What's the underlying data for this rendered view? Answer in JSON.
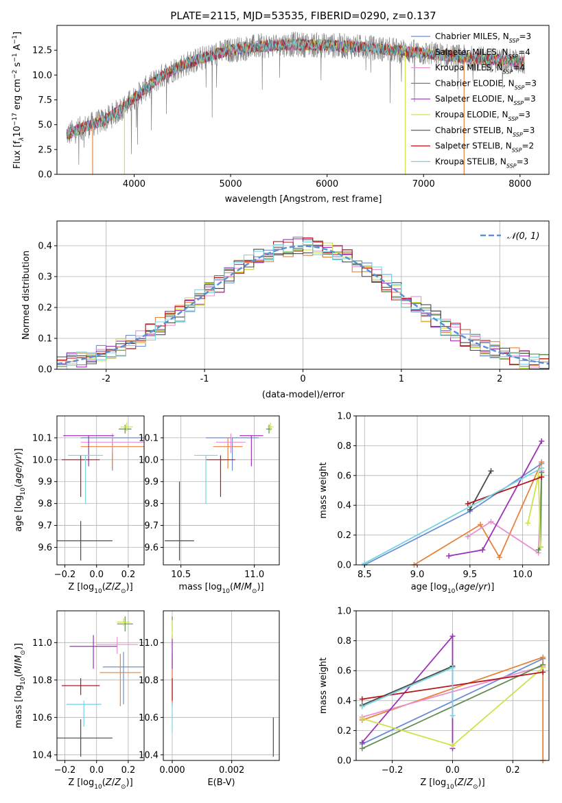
{
  "title": "PLATE=2115, MJD=53535, FIBERID=0290, z=0.137",
  "colors": {
    "chabrier_miles": "#6a8ed6",
    "salpeter_miles": "#e8823a",
    "kroupa_miles": "#e78fcf",
    "chabrier_elodie": "#5f8c52",
    "salpeter_elodie": "#9b32b8",
    "kroupa_elodie": "#cfe24c",
    "chabrier_stelib": "#4a4a4a",
    "salpeter_stelib": "#b5161b",
    "kroupa_stelib": "#77d3e0",
    "gaussian": "#5b8fd6",
    "grid": "#b0b0b0",
    "data_gray": "#808080"
  },
  "legend": [
    {
      "key": "chabrier_miles",
      "label": "Chabrier MILES, N",
      "sub": "SSP",
      "suffix": "=3"
    },
    {
      "key": "salpeter_miles",
      "label": "Salpeter MILES, N",
      "sub": "SSP",
      "suffix": "=4"
    },
    {
      "key": "kroupa_miles",
      "label": "Kroupa MILES, N",
      "sub": "SSP",
      "suffix": "=4"
    },
    {
      "key": "chabrier_elodie",
      "label": "Chabrier ELODIE, N",
      "sub": "SSP",
      "suffix": "=3"
    },
    {
      "key": "salpeter_elodie",
      "label": "Salpeter ELODIE, N",
      "sub": "SSP",
      "suffix": "=3"
    },
    {
      "key": "kroupa_elodie",
      "label": "Kroupa ELODIE, N",
      "sub": "SSP",
      "suffix": "=3"
    },
    {
      "key": "chabrier_stelib",
      "label": "Chabrier STELIB, N",
      "sub": "SSP",
      "suffix": "=3"
    },
    {
      "key": "salpeter_stelib",
      "label": "Salpeter STELIB, N",
      "sub": "SSP",
      "suffix": "=2"
    },
    {
      "key": "kroupa_stelib",
      "label": "Kroupa STELIB, N",
      "sub": "SSP",
      "suffix": "=3"
    }
  ],
  "chart_data": [
    {
      "id": "spectrum",
      "type": "line",
      "xlabel": "wavelength [Angstrom, rest frame]",
      "ylabel_parts": [
        "Flux [f",
        "λ",
        "10",
        "−17",
        " erg cm",
        "−2",
        " s",
        "−1",
        " A",
        "−1",
        "]"
      ],
      "xlim": [
        3200,
        8300
      ],
      "ylim": [
        0,
        15
      ],
      "xticks": [
        4000,
        5000,
        6000,
        7000,
        8000
      ],
      "yticks": [
        0,
        2.5,
        5,
        7.5,
        10,
        12.5
      ],
      "ytick_labels": [
        "0.0",
        "2.5",
        "5.0",
        "7.5",
        "10.0",
        "12.5"
      ],
      "continuum": {
        "x": [
          3300,
          3500,
          3700,
          3900,
          4100,
          4300,
          4500,
          4800,
          5000,
          5300,
          5600,
          6000,
          6400,
          6800,
          7200,
          7600,
          8050
        ],
        "y": [
          4.0,
          4.8,
          5.5,
          6.8,
          8.5,
          10.0,
          11.0,
          12.0,
          12.5,
          12.9,
          13.1,
          13.0,
          12.8,
          12.4,
          12.0,
          11.6,
          11.3
        ]
      },
      "grid": false
    },
    {
      "id": "residuals",
      "type": "step",
      "xlabel": "(data-model)/error",
      "ylabel": "Normed distribution",
      "xlim": [
        -2.5,
        2.5
      ],
      "ylim": [
        0,
        0.48
      ],
      "xticks": [
        -2,
        -1,
        0,
        1,
        2
      ],
      "yticks": [
        0,
        0.1,
        0.2,
        0.3,
        0.4
      ],
      "ytick_labels": [
        "0.0",
        "0.1",
        "0.2",
        "0.3",
        "0.4"
      ],
      "legend_label": "𝒩(0, 1)",
      "bin_width": 0.1,
      "gaussian": {
        "mu": 0,
        "sigma": 1
      },
      "grid": true
    },
    {
      "id": "age_vs_Z",
      "type": "errorbar",
      "xlabel": "Z [log10(Z/Z⊙)]",
      "ylabel": "age [log10(age/yr)]",
      "xlim": [
        -0.25,
        0.3
      ],
      "ylim": [
        9.52,
        10.2
      ],
      "xticks": [
        -0.2,
        0,
        0.2
      ],
      "xtick_labels": [
        "−0.2",
        "0.0",
        "0.2"
      ],
      "yticks": [
        9.6,
        9.7,
        9.8,
        9.9,
        10.0,
        10.1
      ],
      "ytick_labels": [
        "9.6",
        "9.7",
        "9.8",
        "9.9",
        "10.0",
        "10.1"
      ],
      "points": [
        {
          "key": "chabrier_miles",
          "x": 0.1,
          "xerr": 0.2,
          "y": 10.1,
          "yerr": [
            0.15,
            0.0
          ]
        },
        {
          "key": "salpeter_miles",
          "x": 0.1,
          "xerr": 0.2,
          "y": 10.06,
          "yerr": [
            0.1,
            0.04
          ]
        },
        {
          "key": "kroupa_miles",
          "x": 0.1,
          "xerr": 0.2,
          "y": 10.08,
          "yerr": [
            0.05,
            0.04
          ]
        },
        {
          "key": "chabrier_elodie",
          "x": 0.18,
          "xerr": 0.04,
          "y": 10.14,
          "yerr": [
            0.02,
            0.02
          ]
        },
        {
          "key": "salpeter_elodie",
          "x": -0.05,
          "xerr": 0.16,
          "y": 10.11,
          "yerr": [
            0.14,
            0.0
          ]
        },
        {
          "key": "kroupa_elodie",
          "x": 0.19,
          "xerr": 0.04,
          "y": 10.15,
          "yerr": [
            0.02,
            0.02
          ]
        },
        {
          "key": "chabrier_stelib",
          "x": -0.1,
          "xerr": 0.2,
          "y": 9.63,
          "yerr": [
            0.09,
            0.09
          ]
        },
        {
          "key": "salpeter_stelib",
          "x": -0.1,
          "xerr": 0.12,
          "y": 10.0,
          "yerr": [
            0.17,
            0.02
          ]
        },
        {
          "key": "kroupa_stelib",
          "x": -0.07,
          "xerr": 0.11,
          "y": 10.02,
          "yerr": [
            0.22,
            0.0
          ]
        }
      ]
    },
    {
      "id": "age_vs_mass",
      "type": "errorbar",
      "xlabel": "mass [log10(M/M⊙)]",
      "ylabel": "",
      "xlim": [
        10.38,
        11.17
      ],
      "ylim": [
        9.52,
        10.2
      ],
      "xticks": [
        10.5,
        11.0
      ],
      "xtick_labels": [
        "10.5",
        "11.0"
      ],
      "yticks": [
        9.6,
        9.7,
        9.8,
        9.9,
        10.0,
        10.1
      ],
      "ytick_labels": [
        "9.6",
        "9.7",
        "9.8",
        "9.9",
        "10.0",
        "10.1"
      ],
      "points": [
        {
          "key": "chabrier_miles",
          "x": 10.85,
          "xerr": 0.18,
          "y": 10.1,
          "yerr": [
            0.15,
            0.0
          ]
        },
        {
          "key": "salpeter_miles",
          "x": 10.82,
          "xerr": 0.1,
          "y": 10.06,
          "yerr": [
            0.1,
            0.04
          ]
        },
        {
          "key": "kroupa_miles",
          "x": 10.84,
          "xerr": 0.1,
          "y": 10.08,
          "yerr": [
            0.05,
            0.04
          ]
        },
        {
          "key": "chabrier_elodie",
          "x": 11.1,
          "xerr": 0.02,
          "y": 10.14,
          "yerr": [
            0.02,
            0.02
          ]
        },
        {
          "key": "salpeter_elodie",
          "x": 10.98,
          "xerr": 0.08,
          "y": 10.11,
          "yerr": [
            0.14,
            0.0
          ]
        },
        {
          "key": "kroupa_elodie",
          "x": 11.11,
          "xerr": 0.02,
          "y": 10.15,
          "yerr": [
            0.02,
            0.02
          ]
        },
        {
          "key": "chabrier_stelib",
          "x": 10.49,
          "xerr": 0.1,
          "y": 9.63,
          "yerr": [
            0.09,
            0.27
          ]
        },
        {
          "key": "salpeter_stelib",
          "x": 10.77,
          "xerr": 0.1,
          "y": 10.0,
          "yerr": [
            0.17,
            0.02
          ]
        },
        {
          "key": "kroupa_stelib",
          "x": 10.67,
          "xerr": 0.08,
          "y": 10.02,
          "yerr": [
            0.22,
            0.0
          ]
        }
      ]
    },
    {
      "id": "weight_vs_age",
      "type": "line",
      "xlabel": "age [log10(age/yr)]",
      "ylabel": "mass weight",
      "xlim": [
        8.42,
        10.25
      ],
      "ylim": [
        0,
        1
      ],
      "xticks": [
        8.5,
        9.0,
        9.5,
        10.0
      ],
      "xtick_labels": [
        "8.5",
        "9.0",
        "9.5",
        "10.0"
      ],
      "yticks": [
        0,
        0.2,
        0.4,
        0.6,
        0.8,
        1.0
      ],
      "ytick_labels": [
        "0.0",
        "0.2",
        "0.4",
        "0.6",
        "0.8",
        "1.0"
      ],
      "grid": true,
      "series": [
        {
          "key": "chabrier_miles",
          "x": [
            8.5,
            9.5,
            10.18
          ],
          "y": [
            0.0,
            0.36,
            0.68
          ]
        },
        {
          "key": "salpeter_miles",
          "x": [
            8.97,
            9.6,
            9.78,
            10.18
          ],
          "y": [
            0.0,
            0.27,
            0.05,
            0.69
          ]
        },
        {
          "key": "kroupa_miles",
          "x": [
            9.48,
            9.7,
            10.15,
            10.18
          ],
          "y": [
            0.19,
            0.29,
            0.08,
            0.63
          ]
        },
        {
          "key": "chabrier_elodie",
          "x": [
            10.15,
            10.17,
            10.18
          ],
          "y": [
            0.1,
            0.12,
            0.62
          ]
        },
        {
          "key": "salpeter_elodie",
          "x": [
            9.3,
            9.62,
            10.18
          ],
          "y": [
            0.06,
            0.1,
            0.83
          ]
        },
        {
          "key": "kroupa_elodie",
          "x": [
            10.05,
            10.15,
            10.17
          ],
          "y": [
            0.28,
            0.6,
            0.12
          ]
        },
        {
          "key": "chabrier_stelib",
          "x": [
            9.5,
            9.7
          ],
          "y": [
            0.37,
            0.63
          ]
        },
        {
          "key": "salpeter_stelib",
          "x": [
            9.48,
            10.18
          ],
          "y": [
            0.41,
            0.59
          ]
        },
        {
          "key": "kroupa_stelib",
          "x": [
            8.5,
            10.18
          ],
          "y": [
            0.01,
            0.65
          ]
        }
      ]
    },
    {
      "id": "mass_vs_Z",
      "type": "errorbar",
      "xlabel": "Z [log10(Z/Z⊙)]",
      "ylabel": "mass [log10(M/M⊙)]",
      "xlim": [
        -0.25,
        0.3
      ],
      "ylim": [
        10.37,
        11.17
      ],
      "xticks": [
        -0.2,
        0,
        0.2
      ],
      "xtick_labels": [
        "−0.2",
        "0.0",
        "0.2"
      ],
      "yticks": [
        10.4,
        10.6,
        10.8,
        11.0
      ],
      "ytick_labels": [
        "10.4",
        "10.6",
        "10.8",
        "11.0"
      ],
      "points": [
        {
          "key": "chabrier_miles",
          "x": 0.17,
          "xerr": 0.13,
          "y": 10.87,
          "yerr": [
            0.2,
            0.08
          ]
        },
        {
          "key": "salpeter_miles",
          "x": 0.15,
          "xerr": 0.13,
          "y": 10.84,
          "yerr": [
            0.18,
            0.1
          ]
        },
        {
          "key": "kroupa_miles",
          "x": 0.13,
          "xerr": 0.13,
          "y": 10.99,
          "yerr": [
            0.05,
            0.04
          ]
        },
        {
          "key": "chabrier_elodie",
          "x": 0.18,
          "xerr": 0.05,
          "y": 11.1,
          "yerr": [
            0.04,
            0.04
          ]
        },
        {
          "key": "salpeter_elodie",
          "x": -0.02,
          "xerr": 0.15,
          "y": 10.98,
          "yerr": [
            0.12,
            0.06
          ]
        },
        {
          "key": "kroupa_elodie",
          "x": 0.17,
          "xerr": 0.04,
          "y": 11.11,
          "yerr": [
            0.02,
            0.02
          ]
        },
        {
          "key": "chabrier_stelib",
          "x": -0.1,
          "xerr": 0.2,
          "y": 10.49,
          "yerr": [
            0.1,
            0.1
          ]
        },
        {
          "key": "salpeter_stelib",
          "x": -0.1,
          "xerr": 0.12,
          "y": 10.77,
          "yerr": [
            0.05,
            0.04
          ]
        },
        {
          "key": "kroupa_stelib",
          "x": -0.08,
          "xerr": 0.11,
          "y": 10.67,
          "yerr": [
            0.12,
            0.02
          ]
        }
      ]
    },
    {
      "id": "mass_vs_ebv",
      "type": "errorbar",
      "xlabel": "E(B-V)",
      "ylabel": "",
      "xlim": [
        -0.0003,
        0.0036
      ],
      "ylim": [
        10.37,
        11.17
      ],
      "xticks": [
        0,
        0.002
      ],
      "xtick_labels": [
        "0.000",
        "0.002"
      ],
      "yticks": [
        10.4,
        10.6,
        10.8,
        11.0
      ],
      "ytick_labels": [
        "10.4",
        "10.6",
        "10.8",
        "11.0"
      ],
      "points": [
        {
          "key": "chabrier_miles",
          "x": 0.0,
          "xerr": 0,
          "y": 10.87,
          "yerr": [
            0.2,
            0.08
          ]
        },
        {
          "key": "salpeter_miles",
          "x": 0.0,
          "xerr": 0,
          "y": 10.84,
          "yerr": [
            0.18,
            0.1
          ]
        },
        {
          "key": "kroupa_miles",
          "x": 0.0,
          "xerr": 0,
          "y": 10.99,
          "yerr": [
            0.05,
            0.04
          ]
        },
        {
          "key": "chabrier_elodie",
          "x": 0.0,
          "xerr": 0,
          "y": 11.1,
          "yerr": [
            0.04,
            0.04
          ]
        },
        {
          "key": "salpeter_elodie",
          "x": 0.0,
          "xerr": 0,
          "y": 10.98,
          "yerr": [
            0.12,
            0.06
          ]
        },
        {
          "key": "kroupa_elodie",
          "x": 0.0,
          "xerr": 0,
          "y": 11.07,
          "yerr": [
            0.05,
            0.05
          ]
        },
        {
          "key": "chabrier_stelib",
          "x": 0.0034,
          "xerr": 0,
          "y": 10.49,
          "yerr": [
            0.1,
            0.11
          ]
        },
        {
          "key": "salpeter_stelib",
          "x": 0.0,
          "xerr": 0,
          "y": 10.77,
          "yerr": [
            0.08,
            0.04
          ]
        },
        {
          "key": "kroupa_stelib",
          "x": 0.0,
          "xerr": 0,
          "y": 10.6,
          "yerr": [
            0.08,
            0.08
          ]
        }
      ]
    },
    {
      "id": "weight_vs_Z",
      "type": "line",
      "xlabel": "Z [log10(Z/Z⊙)]",
      "ylabel": "mass weight",
      "xlim": [
        -0.32,
        0.32
      ],
      "ylim": [
        0,
        1
      ],
      "xticks": [
        -0.2,
        0,
        0.2
      ],
      "xtick_labels": [
        "−0.2",
        "0.0",
        "0.2"
      ],
      "yticks": [
        0,
        0.2,
        0.4,
        0.6,
        0.8,
        1.0
      ],
      "ytick_labels": [
        "0.0",
        "0.2",
        "0.4",
        "0.6",
        "0.8",
        "1.0"
      ],
      "grid": true,
      "series": [
        {
          "key": "chabrier_miles",
          "x": [
            -0.3,
            0.3
          ],
          "y": [
            0.11,
            0.68
          ]
        },
        {
          "key": "salpeter_miles",
          "x": [
            -0.3,
            0.3,
            0.3
          ],
          "y": [
            0.27,
            0.69,
            0.0
          ]
        },
        {
          "key": "kroupa_miles",
          "x": [
            -0.3,
            0.3
          ],
          "y": [
            0.29,
            0.63
          ]
        },
        {
          "key": "chabrier_elodie",
          "x": [
            -0.3,
            0.3
          ],
          "y": [
            0.08,
            0.64
          ]
        },
        {
          "key": "salpeter_elodie",
          "x": [
            -0.3,
            0.0,
            0.0
          ],
          "y": [
            0.12,
            0.83,
            0.08
          ]
        },
        {
          "key": "kroupa_elodie",
          "x": [
            -0.3,
            0.0,
            0.3
          ],
          "y": [
            0.28,
            0.1,
            0.62
          ]
        },
        {
          "key": "chabrier_stelib",
          "x": [
            -0.3,
            0.0
          ],
          "y": [
            0.37,
            0.63
          ]
        },
        {
          "key": "salpeter_stelib",
          "x": [
            -0.3,
            0.3
          ],
          "y": [
            0.41,
            0.59
          ]
        },
        {
          "key": "kroupa_stelib",
          "x": [
            -0.3,
            0.0,
            0.0
          ],
          "y": [
            0.36,
            0.62,
            0.3
          ]
        }
      ]
    }
  ]
}
